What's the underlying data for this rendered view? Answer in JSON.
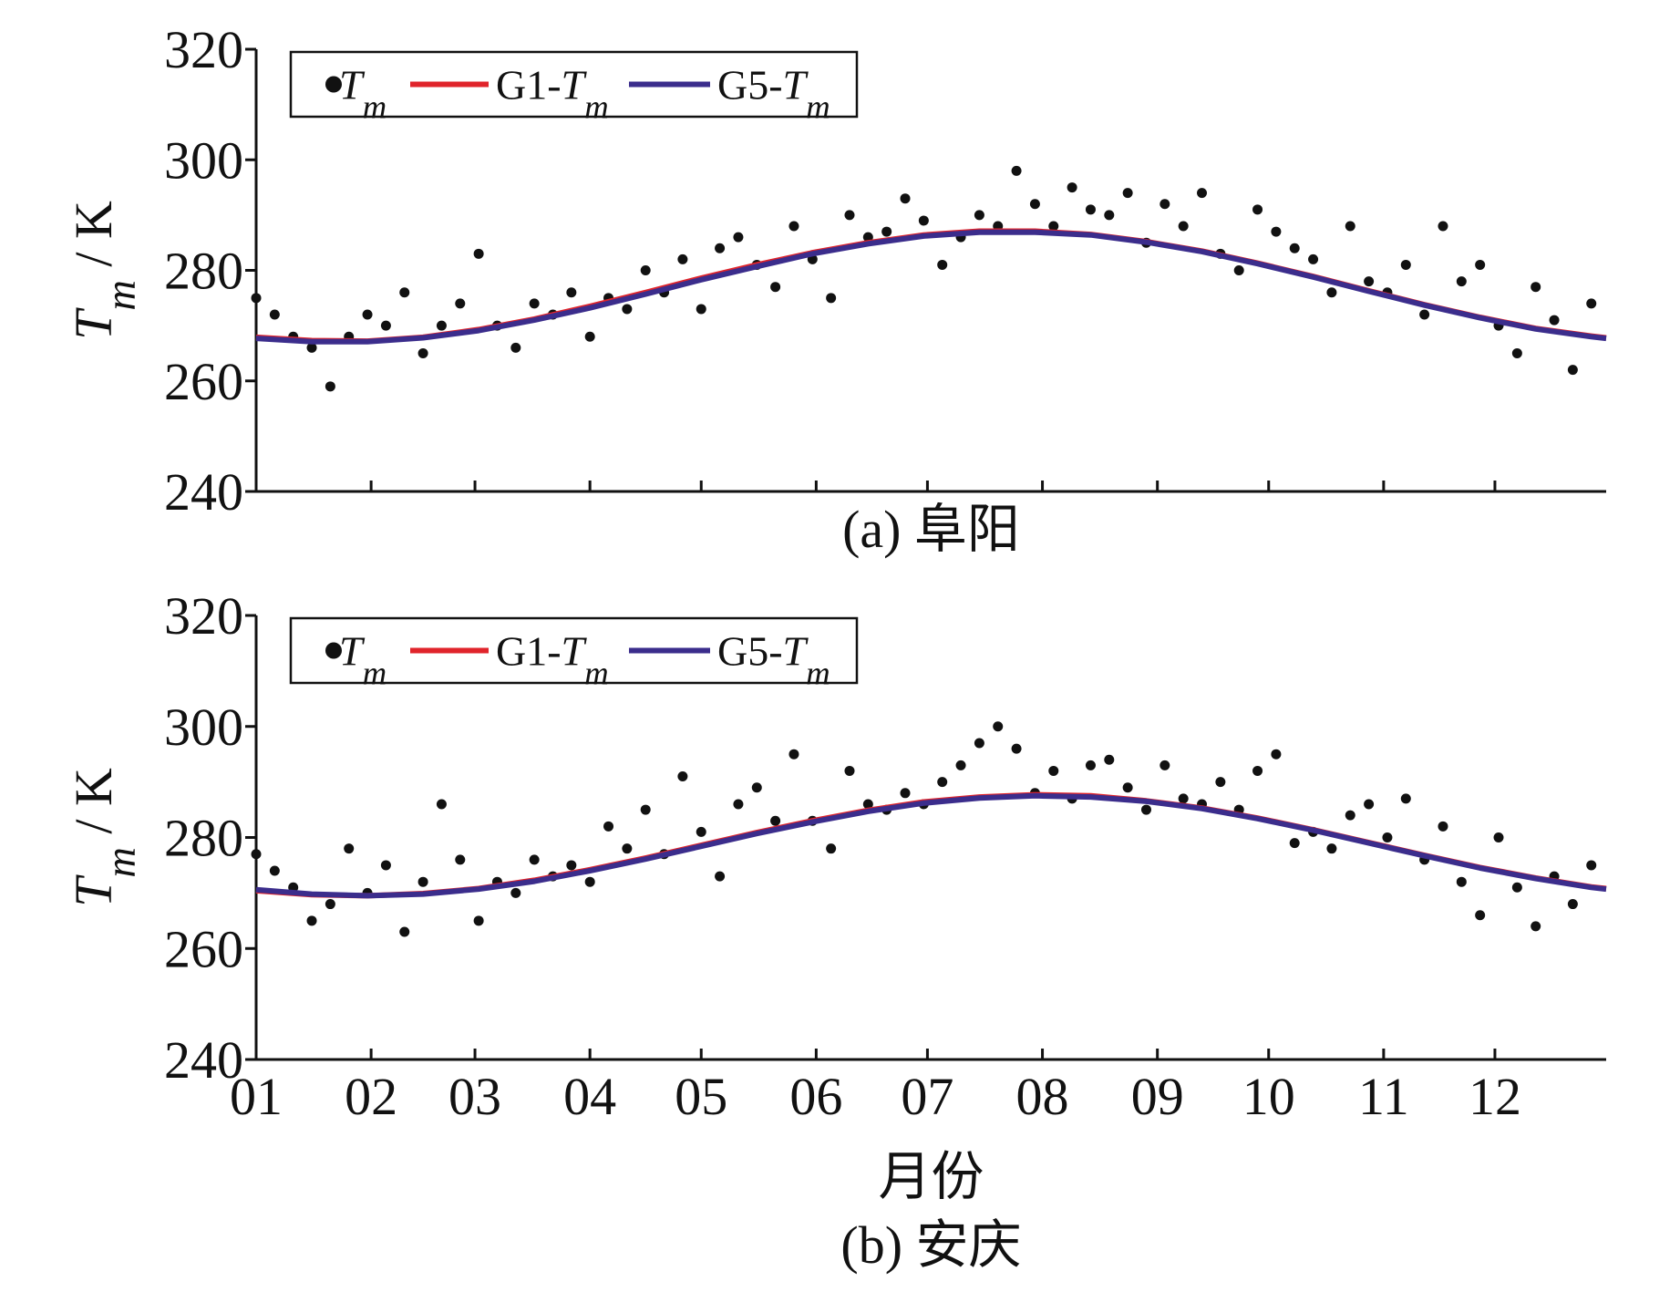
{
  "chart_data": [
    {
      "type": "scatter",
      "caption": "(a) 阜阳",
      "ylabel": "Tm / K",
      "xlim": [
        1,
        365
      ],
      "xticks": [
        1,
        32,
        60,
        91,
        121,
        152,
        182,
        213,
        244,
        274,
        305,
        335
      ],
      "ylim": [
        240,
        320
      ],
      "yticks": [
        240,
        260,
        280,
        300,
        320
      ],
      "series": [
        {
          "name": "Tm",
          "type": "scatter",
          "color": "#111111",
          "x": [
            1,
            6,
            11,
            16,
            21,
            26,
            31,
            36,
            41,
            46,
            51,
            56,
            61,
            66,
            71,
            76,
            81,
            86,
            91,
            96,
            101,
            106,
            111,
            116,
            121,
            126,
            131,
            136,
            141,
            146,
            151,
            156,
            161,
            166,
            171,
            176,
            181,
            186,
            191,
            196,
            201,
            206,
            211,
            216,
            221,
            226,
            231,
            236,
            241,
            246,
            251,
            256,
            261,
            266,
            271,
            276,
            281,
            286,
            291,
            296,
            301,
            306,
            311,
            316,
            321,
            326,
            331,
            336,
            341,
            346,
            351,
            356,
            361
          ],
          "values": [
            275,
            272,
            268,
            266,
            259,
            268,
            272,
            270,
            276,
            265,
            270,
            274,
            283,
            270,
            266,
            274,
            272,
            276,
            268,
            275,
            273,
            280,
            276,
            282,
            273,
            284,
            286,
            281,
            277,
            288,
            282,
            275,
            290,
            286,
            287,
            293,
            289,
            281,
            286,
            290,
            288,
            298,
            292,
            288,
            295,
            291,
            290,
            294,
            285,
            292,
            288,
            294,
            283,
            280,
            291,
            287,
            284,
            282,
            276,
            288,
            278,
            276,
            281,
            272,
            288,
            278,
            281,
            270,
            265,
            277,
            271,
            262,
            274
          ]
        },
        {
          "name": "G1-Tm",
          "type": "line",
          "color": "#e0242b",
          "x": [
            1,
            16,
            31,
            46,
            61,
            76,
            91,
            106,
            121,
            136,
            151,
            166,
            181,
            196,
            211,
            226,
            241,
            256,
            271,
            286,
            301,
            316,
            331,
            346,
            361,
            365
          ],
          "values": [
            267.9,
            267.3,
            267.2,
            267.9,
            269.3,
            271.2,
            273.5,
            276.0,
            278.6,
            281.0,
            283.2,
            285.0,
            286.4,
            287.1,
            287.1,
            286.5,
            285.2,
            283.5,
            281.3,
            278.9,
            276.3,
            273.8,
            271.5,
            269.5,
            268.1,
            267.8
          ]
        },
        {
          "name": "G5-Tm",
          "type": "line",
          "color": "#3b2d8c",
          "x": [
            1,
            16,
            31,
            46,
            61,
            76,
            91,
            106,
            121,
            136,
            151,
            166,
            181,
            196,
            211,
            226,
            241,
            256,
            271,
            286,
            301,
            316,
            331,
            346,
            361,
            365
          ],
          "values": [
            267.7,
            267.1,
            267.1,
            267.8,
            269.1,
            271.0,
            273.2,
            275.7,
            278.3,
            280.7,
            283.0,
            284.8,
            286.2,
            286.9,
            286.9,
            286.4,
            285.1,
            283.4,
            281.2,
            278.8,
            276.2,
            273.7,
            271.4,
            269.4,
            268.0,
            267.7
          ]
        }
      ]
    },
    {
      "type": "scatter",
      "caption": "(b) 安庆",
      "ylabel": "Tm / K",
      "xlabel": "月份",
      "xlim": [
        1,
        365
      ],
      "xticks": [
        {
          "value": 1,
          "label": "01"
        },
        {
          "value": 32,
          "label": "02"
        },
        {
          "value": 60,
          "label": "03"
        },
        {
          "value": 91,
          "label": "04"
        },
        {
          "value": 121,
          "label": "05"
        },
        {
          "value": 152,
          "label": "06"
        },
        {
          "value": 182,
          "label": "07"
        },
        {
          "value": 213,
          "label": "08"
        },
        {
          "value": 244,
          "label": "09"
        },
        {
          "value": 274,
          "label": "10"
        },
        {
          "value": 305,
          "label": "11"
        },
        {
          "value": 335,
          "label": "12"
        }
      ],
      "ylim": [
        240,
        320
      ],
      "yticks": [
        240,
        260,
        280,
        300,
        320
      ],
      "series": [
        {
          "name": "Tm",
          "type": "scatter",
          "color": "#111111",
          "x": [
            1,
            6,
            11,
            16,
            21,
            26,
            31,
            36,
            41,
            46,
            51,
            56,
            61,
            66,
            71,
            76,
            81,
            86,
            91,
            96,
            101,
            106,
            111,
            116,
            121,
            126,
            131,
            136,
            141,
            146,
            151,
            156,
            161,
            166,
            171,
            176,
            181,
            186,
            191,
            196,
            201,
            206,
            211,
            216,
            221,
            226,
            231,
            236,
            241,
            246,
            251,
            256,
            261,
            266,
            271,
            276,
            281,
            286,
            291,
            296,
            301,
            306,
            311,
            316,
            321,
            326,
            331,
            336,
            341,
            346,
            351,
            356,
            361
          ],
          "values": [
            277,
            274,
            271,
            265,
            268,
            278,
            270,
            275,
            263,
            272,
            286,
            276,
            265,
            272,
            270,
            276,
            273,
            275,
            272,
            282,
            278,
            285,
            277,
            291,
            281,
            273,
            286,
            289,
            283,
            295,
            283,
            278,
            292,
            286,
            285,
            288,
            286,
            290,
            293,
            297,
            300,
            296,
            288,
            292,
            287,
            293,
            294,
            289,
            285,
            293,
            287,
            286,
            290,
            285,
            292,
            295,
            279,
            281,
            278,
            284,
            286,
            280,
            287,
            276,
            282,
            272,
            266,
            280,
            271,
            264,
            273,
            268,
            275
          ]
        },
        {
          "name": "G1-Tm",
          "type": "line",
          "color": "#e0242b",
          "x": [
            1,
            16,
            31,
            46,
            61,
            76,
            91,
            106,
            121,
            136,
            151,
            166,
            181,
            196,
            211,
            226,
            241,
            256,
            271,
            286,
            301,
            316,
            331,
            346,
            361,
            365
          ],
          "values": [
            270.4,
            269.7,
            269.5,
            269.9,
            270.8,
            272.3,
            274.2,
            276.3,
            278.6,
            280.9,
            283.0,
            284.9,
            286.4,
            287.3,
            287.7,
            287.5,
            286.6,
            285.3,
            283.5,
            281.4,
            279.1,
            276.8,
            274.6,
            272.7,
            271.1,
            270.8
          ]
        },
        {
          "name": "G5-Tm",
          "type": "line",
          "color": "#3b2d8c",
          "x": [
            1,
            16,
            31,
            46,
            61,
            76,
            91,
            106,
            121,
            136,
            151,
            166,
            181,
            196,
            211,
            226,
            241,
            256,
            271,
            286,
            301,
            316,
            331,
            346,
            361,
            365
          ],
          "values": [
            270.6,
            269.8,
            269.5,
            269.8,
            270.7,
            272.1,
            274.0,
            276.1,
            278.4,
            280.7,
            282.8,
            284.7,
            286.2,
            287.1,
            287.5,
            287.3,
            286.5,
            285.2,
            283.4,
            281.3,
            279.0,
            276.7,
            274.5,
            272.6,
            271.0,
            270.7
          ]
        }
      ]
    }
  ]
}
